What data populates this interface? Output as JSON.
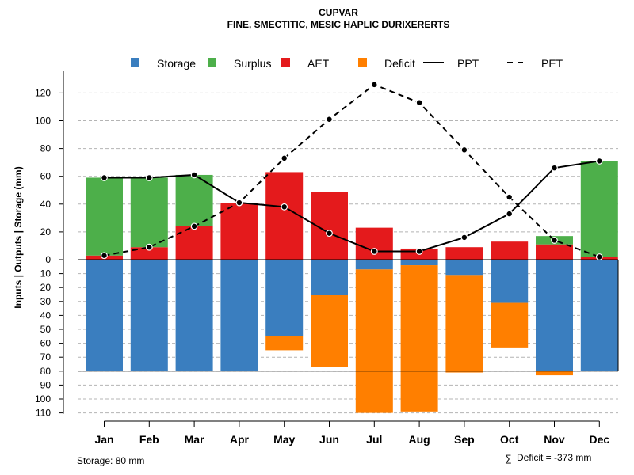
{
  "header": {
    "title": "CUPVAR",
    "subtitle": "FINE, SMECTITIC, MESIC HAPLIC DURIXERERTS"
  },
  "legend": [
    {
      "key": "storage",
      "label": "Storage",
      "kind": "square",
      "color": "#3a7ebf"
    },
    {
      "key": "surplus",
      "label": "Surplus",
      "kind": "square",
      "color": "#4daf4a"
    },
    {
      "key": "aet",
      "label": "AET",
      "kind": "square",
      "color": "#e41a1c"
    },
    {
      "key": "deficit",
      "label": "Deficit",
      "kind": "square",
      "color": "#ff7f00"
    },
    {
      "key": "ppt",
      "label": "PPT",
      "kind": "solid-line",
      "color": "#000000"
    },
    {
      "key": "pet",
      "label": "PET",
      "kind": "dashed-line",
      "color": "#000000"
    }
  ],
  "footer": {
    "storage_note": "Storage: 80 mm",
    "deficit_symbol": "∑",
    "deficit_note": "Deficit = -373 mm"
  },
  "chart_data": {
    "type": "bar",
    "title": "CUPVAR",
    "subtitle": "FINE, SMECTITIC, MESIC HAPLIC DURIXERERTS",
    "ylabel": "Inputs | Outputs | Storage    (mm)",
    "categories": [
      "Jan",
      "Feb",
      "Mar",
      "Apr",
      "May",
      "Jun",
      "Jul",
      "Aug",
      "Sep",
      "Oct",
      "Nov",
      "Dec"
    ],
    "upper_axis": {
      "range": [
        0,
        130
      ],
      "ticks": [
        "0",
        "20",
        "40",
        "60",
        "80",
        "100",
        "120"
      ],
      "tick_values": [
        0,
        20,
        40,
        60,
        80,
        100,
        120
      ]
    },
    "lower_axis": {
      "range": [
        0,
        110
      ],
      "ticks": [
        "10",
        "20",
        "30",
        "40",
        "50",
        "60",
        "70",
        "80",
        "90",
        "100",
        "110"
      ],
      "tick_values": [
        10,
        20,
        30,
        40,
        50,
        60,
        70,
        80,
        90,
        100,
        110
      ]
    },
    "capacity": 80,
    "grid": true,
    "upper_series": [
      {
        "name": "AET",
        "values": [
          3,
          9,
          24,
          41,
          63,
          49,
          23,
          8,
          9,
          13,
          11,
          2
        ]
      },
      {
        "name": "Surplus",
        "values": [
          56,
          50,
          37,
          0,
          0,
          0,
          0,
          0,
          0,
          0,
          6,
          69
        ]
      }
    ],
    "lower_series": [
      {
        "name": "Storage",
        "values": [
          80,
          80,
          80,
          80,
          55,
          25,
          7,
          4,
          11,
          31,
          80,
          80
        ]
      },
      {
        "name": "Deficit",
        "values": [
          0,
          0,
          0,
          0,
          10,
          52,
          103,
          105,
          70,
          32,
          3,
          0
        ]
      }
    ],
    "lines": [
      {
        "name": "PPT",
        "style": "solid",
        "values": [
          59,
          59,
          61,
          41,
          38,
          19,
          6,
          6,
          16,
          33,
          66,
          71
        ]
      },
      {
        "name": "PET",
        "style": "dashed",
        "values": [
          3,
          9,
          24,
          41,
          73,
          101,
          126,
          113,
          79,
          45,
          14,
          2
        ]
      }
    ],
    "storage_capacity_mm": 80,
    "total_deficit_mm": -373
  }
}
